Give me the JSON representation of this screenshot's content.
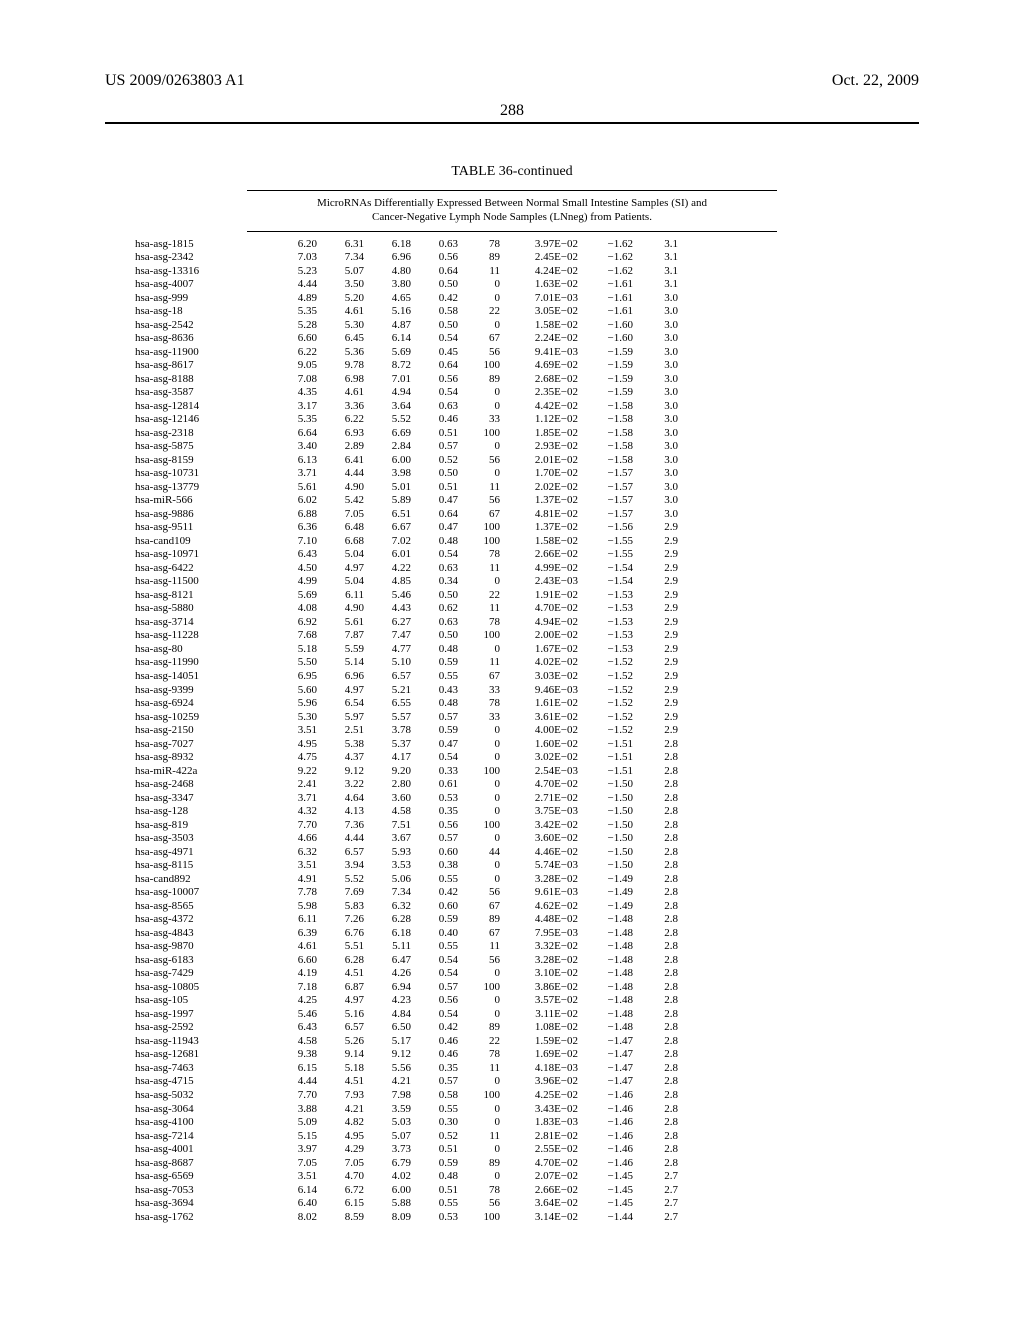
{
  "header": {
    "left": "US 2009/0263803 A1",
    "right": "Oct. 22, 2009",
    "page_number": "288"
  },
  "table": {
    "title": "TABLE 36-continued",
    "caption_line1": "MicroRNAs Differentially Expressed Between Normal Small Intestine Samples (SI) and",
    "caption_line2": "Cancer-Negative Lymph Node Samples (LNneg) from Patients."
  },
  "style": {
    "background_color": "#ffffff",
    "text_color": "#000000",
    "rule_color": "#000000",
    "body_fontsize": 11,
    "title_fontsize": 14,
    "header_fontsize": 16
  },
  "rows": [
    [
      "hsa-asg-1815",
      "6.20",
      "6.31",
      "6.18",
      "0.63",
      "78",
      "3.97E−02",
      "−1.62",
      "3.1"
    ],
    [
      "hsa-asg-2342",
      "7.03",
      "7.34",
      "6.96",
      "0.56",
      "89",
      "2.45E−02",
      "−1.62",
      "3.1"
    ],
    [
      "hsa-asg-13316",
      "5.23",
      "5.07",
      "4.80",
      "0.64",
      "11",
      "4.24E−02",
      "−1.62",
      "3.1"
    ],
    [
      "hsa-asg-4007",
      "4.44",
      "3.50",
      "3.80",
      "0.50",
      "0",
      "1.63E−02",
      "−1.61",
      "3.1"
    ],
    [
      "hsa-asg-999",
      "4.89",
      "5.20",
      "4.65",
      "0.42",
      "0",
      "7.01E−03",
      "−1.61",
      "3.0"
    ],
    [
      "hsa-asg-18",
      "5.35",
      "4.61",
      "5.16",
      "0.58",
      "22",
      "3.05E−02",
      "−1.61",
      "3.0"
    ],
    [
      "hsa-asg-2542",
      "5.28",
      "5.30",
      "4.87",
      "0.50",
      "0",
      "1.58E−02",
      "−1.60",
      "3.0"
    ],
    [
      "hsa-asg-8636",
      "6.60",
      "6.45",
      "6.14",
      "0.54",
      "67",
      "2.24E−02",
      "−1.60",
      "3.0"
    ],
    [
      "hsa-asg-11900",
      "6.22",
      "5.36",
      "5.69",
      "0.45",
      "56",
      "9.41E−03",
      "−1.59",
      "3.0"
    ],
    [
      "hsa-asg-8617",
      "9.05",
      "9.78",
      "8.72",
      "0.64",
      "100",
      "4.69E−02",
      "−1.59",
      "3.0"
    ],
    [
      "hsa-asg-8188",
      "7.08",
      "6.98",
      "7.01",
      "0.56",
      "89",
      "2.68E−02",
      "−1.59",
      "3.0"
    ],
    [
      "hsa-asg-3587",
      "4.35",
      "4.61",
      "4.94",
      "0.54",
      "0",
      "2.35E−02",
      "−1.59",
      "3.0"
    ],
    [
      "hsa-asg-12814",
      "3.17",
      "3.36",
      "3.64",
      "0.63",
      "0",
      "4.42E−02",
      "−1.58",
      "3.0"
    ],
    [
      "hsa-asg-12146",
      "5.35",
      "6.22",
      "5.52",
      "0.46",
      "33",
      "1.12E−02",
      "−1.58",
      "3.0"
    ],
    [
      "hsa-asg-2318",
      "6.64",
      "6.93",
      "6.69",
      "0.51",
      "100",
      "1.85E−02",
      "−1.58",
      "3.0"
    ],
    [
      "hsa-asg-5875",
      "3.40",
      "2.89",
      "2.84",
      "0.57",
      "0",
      "2.93E−02",
      "−1.58",
      "3.0"
    ],
    [
      "hsa-asg-8159",
      "6.13",
      "6.41",
      "6.00",
      "0.52",
      "56",
      "2.01E−02",
      "−1.58",
      "3.0"
    ],
    [
      "hsa-asg-10731",
      "3.71",
      "4.44",
      "3.98",
      "0.50",
      "0",
      "1.70E−02",
      "−1.57",
      "3.0"
    ],
    [
      "hsa-asg-13779",
      "5.61",
      "4.90",
      "5.01",
      "0.51",
      "11",
      "2.02E−02",
      "−1.57",
      "3.0"
    ],
    [
      "hsa-miR-566",
      "6.02",
      "5.42",
      "5.89",
      "0.47",
      "56",
      "1.37E−02",
      "−1.57",
      "3.0"
    ],
    [
      "hsa-asg-9886",
      "6.88",
      "7.05",
      "6.51",
      "0.64",
      "67",
      "4.81E−02",
      "−1.57",
      "3.0"
    ],
    [
      "hsa-asg-9511",
      "6.36",
      "6.48",
      "6.67",
      "0.47",
      "100",
      "1.37E−02",
      "−1.56",
      "2.9"
    ],
    [
      "hsa-cand109",
      "7.10",
      "6.68",
      "7.02",
      "0.48",
      "100",
      "1.58E−02",
      "−1.55",
      "2.9"
    ],
    [
      "hsa-asg-10971",
      "6.43",
      "5.04",
      "6.01",
      "0.54",
      "78",
      "2.66E−02",
      "−1.55",
      "2.9"
    ],
    [
      "hsa-asg-6422",
      "4.50",
      "4.97",
      "4.22",
      "0.63",
      "11",
      "4.99E−02",
      "−1.54",
      "2.9"
    ],
    [
      "hsa-asg-11500",
      "4.99",
      "5.04",
      "4.85",
      "0.34",
      "0",
      "2.43E−03",
      "−1.54",
      "2.9"
    ],
    [
      "hsa-asg-8121",
      "5.69",
      "6.11",
      "5.46",
      "0.50",
      "22",
      "1.91E−02",
      "−1.53",
      "2.9"
    ],
    [
      "hsa-asg-5880",
      "4.08",
      "4.90",
      "4.43",
      "0.62",
      "11",
      "4.70E−02",
      "−1.53",
      "2.9"
    ],
    [
      "hsa-asg-3714",
      "6.92",
      "5.61",
      "6.27",
      "0.63",
      "78",
      "4.94E−02",
      "−1.53",
      "2.9"
    ],
    [
      "hsa-asg-11228",
      "7.68",
      "7.87",
      "7.47",
      "0.50",
      "100",
      "2.00E−02",
      "−1.53",
      "2.9"
    ],
    [
      "hsa-asg-80",
      "5.18",
      "5.59",
      "4.77",
      "0.48",
      "0",
      "1.67E−02",
      "−1.53",
      "2.9"
    ],
    [
      "hsa-asg-11990",
      "5.50",
      "5.14",
      "5.10",
      "0.59",
      "11",
      "4.02E−02",
      "−1.52",
      "2.9"
    ],
    [
      "hsa-asg-14051",
      "6.95",
      "6.96",
      "6.57",
      "0.55",
      "67",
      "3.03E−02",
      "−1.52",
      "2.9"
    ],
    [
      "hsa-asg-9399",
      "5.60",
      "4.97",
      "5.21",
      "0.43",
      "33",
      "9.46E−03",
      "−1.52",
      "2.9"
    ],
    [
      "hsa-asg-6924",
      "5.96",
      "6.54",
      "6.55",
      "0.48",
      "78",
      "1.61E−02",
      "−1.52",
      "2.9"
    ],
    [
      "hsa-asg-10259",
      "5.30",
      "5.97",
      "5.57",
      "0.57",
      "33",
      "3.61E−02",
      "−1.52",
      "2.9"
    ],
    [
      "hsa-asg-2150",
      "3.51",
      "2.51",
      "3.78",
      "0.59",
      "0",
      "4.00E−02",
      "−1.52",
      "2.9"
    ],
    [
      "hsa-asg-7027",
      "4.95",
      "5.38",
      "5.37",
      "0.47",
      "0",
      "1.60E−02",
      "−1.51",
      "2.8"
    ],
    [
      "hsa-asg-8932",
      "4.75",
      "4.37",
      "4.17",
      "0.54",
      "0",
      "3.02E−02",
      "−1.51",
      "2.8"
    ],
    [
      "hsa-miR-422a",
      "9.22",
      "9.12",
      "9.20",
      "0.33",
      "100",
      "2.54E−03",
      "−1.51",
      "2.8"
    ],
    [
      "hsa-asg-2468",
      "2.41",
      "3.22",
      "2.80",
      "0.61",
      "0",
      "4.70E−02",
      "−1.50",
      "2.8"
    ],
    [
      "hsa-asg-3347",
      "3.71",
      "4.64",
      "3.60",
      "0.53",
      "0",
      "2.71E−02",
      "−1.50",
      "2.8"
    ],
    [
      "hsa-asg-128",
      "4.32",
      "4.13",
      "4.58",
      "0.35",
      "0",
      "3.75E−03",
      "−1.50",
      "2.8"
    ],
    [
      "hsa-asg-819",
      "7.70",
      "7.36",
      "7.51",
      "0.56",
      "100",
      "3.42E−02",
      "−1.50",
      "2.8"
    ],
    [
      "hsa-asg-3503",
      "4.66",
      "4.44",
      "3.67",
      "0.57",
      "0",
      "3.60E−02",
      "−1.50",
      "2.8"
    ],
    [
      "hsa-asg-4971",
      "6.32",
      "6.57",
      "5.93",
      "0.60",
      "44",
      "4.46E−02",
      "−1.50",
      "2.8"
    ],
    [
      "hsa-asg-8115",
      "3.51",
      "3.94",
      "3.53",
      "0.38",
      "0",
      "5.74E−03",
      "−1.50",
      "2.8"
    ],
    [
      "hsa-cand892",
      "4.91",
      "5.52",
      "5.06",
      "0.55",
      "0",
      "3.28E−02",
      "−1.49",
      "2.8"
    ],
    [
      "hsa-asg-10007",
      "7.78",
      "7.69",
      "7.34",
      "0.42",
      "56",
      "9.61E−03",
      "−1.49",
      "2.8"
    ],
    [
      "hsa-asg-8565",
      "5.98",
      "5.83",
      "6.32",
      "0.60",
      "67",
      "4.62E−02",
      "−1.49",
      "2.8"
    ],
    [
      "hsa-asg-4372",
      "6.11",
      "7.26",
      "6.28",
      "0.59",
      "89",
      "4.48E−02",
      "−1.48",
      "2.8"
    ],
    [
      "hsa-asg-4843",
      "6.39",
      "6.76",
      "6.18",
      "0.40",
      "67",
      "7.95E−03",
      "−1.48",
      "2.8"
    ],
    [
      "hsa-asg-9870",
      "4.61",
      "5.51",
      "5.11",
      "0.55",
      "11",
      "3.32E−02",
      "−1.48",
      "2.8"
    ],
    [
      "hsa-asg-6183",
      "6.60",
      "6.28",
      "6.47",
      "0.54",
      "56",
      "3.28E−02",
      "−1.48",
      "2.8"
    ],
    [
      "hsa-asg-7429",
      "4.19",
      "4.51",
      "4.26",
      "0.54",
      "0",
      "3.10E−02",
      "−1.48",
      "2.8"
    ],
    [
      "hsa-asg-10805",
      "7.18",
      "6.87",
      "6.94",
      "0.57",
      "100",
      "3.86E−02",
      "−1.48",
      "2.8"
    ],
    [
      "hsa-asg-105",
      "4.25",
      "4.97",
      "4.23",
      "0.56",
      "0",
      "3.57E−02",
      "−1.48",
      "2.8"
    ],
    [
      "hsa-asg-1997",
      "5.46",
      "5.16",
      "4.84",
      "0.54",
      "0",
      "3.11E−02",
      "−1.48",
      "2.8"
    ],
    [
      "hsa-asg-2592",
      "6.43",
      "6.57",
      "6.50",
      "0.42",
      "89",
      "1.08E−02",
      "−1.48",
      "2.8"
    ],
    [
      "hsa-asg-11943",
      "4.58",
      "5.26",
      "5.17",
      "0.46",
      "22",
      "1.59E−02",
      "−1.47",
      "2.8"
    ],
    [
      "hsa-asg-12681",
      "9.38",
      "9.14",
      "9.12",
      "0.46",
      "78",
      "1.69E−02",
      "−1.47",
      "2.8"
    ],
    [
      "hsa-asg-7463",
      "6.15",
      "5.18",
      "5.56",
      "0.35",
      "11",
      "4.18E−03",
      "−1.47",
      "2.8"
    ],
    [
      "hsa-asg-4715",
      "4.44",
      "4.51",
      "4.21",
      "0.57",
      "0",
      "3.96E−02",
      "−1.47",
      "2.8"
    ],
    [
      "hsa-asg-5032",
      "7.70",
      "7.93",
      "7.98",
      "0.58",
      "100",
      "4.25E−02",
      "−1.46",
      "2.8"
    ],
    [
      "hsa-asg-3064",
      "3.88",
      "4.21",
      "3.59",
      "0.55",
      "0",
      "3.43E−02",
      "−1.46",
      "2.8"
    ],
    [
      "hsa-asg-4100",
      "5.09",
      "4.82",
      "5.03",
      "0.30",
      "0",
      "1.83E−03",
      "−1.46",
      "2.8"
    ],
    [
      "hsa-asg-7214",
      "5.15",
      "4.95",
      "5.07",
      "0.52",
      "11",
      "2.81E−02",
      "−1.46",
      "2.8"
    ],
    [
      "hsa-asg-4001",
      "3.97",
      "4.29",
      "3.73",
      "0.51",
      "0",
      "2.55E−02",
      "−1.46",
      "2.8"
    ],
    [
      "hsa-asg-8687",
      "7.05",
      "7.05",
      "6.79",
      "0.59",
      "89",
      "4.70E−02",
      "−1.46",
      "2.8"
    ],
    [
      "hsa-asg-6569",
      "3.51",
      "4.70",
      "4.02",
      "0.48",
      "0",
      "2.07E−02",
      "−1.45",
      "2.7"
    ],
    [
      "hsa-asg-7053",
      "6.14",
      "6.72",
      "6.00",
      "0.51",
      "78",
      "2.66E−02",
      "−1.45",
      "2.7"
    ],
    [
      "hsa-asg-3694",
      "6.40",
      "6.15",
      "5.88",
      "0.55",
      "56",
      "3.64E−02",
      "−1.45",
      "2.7"
    ],
    [
      "hsa-asg-1762",
      "8.02",
      "8.59",
      "8.09",
      "0.53",
      "100",
      "3.14E−02",
      "−1.44",
      "2.7"
    ]
  ]
}
